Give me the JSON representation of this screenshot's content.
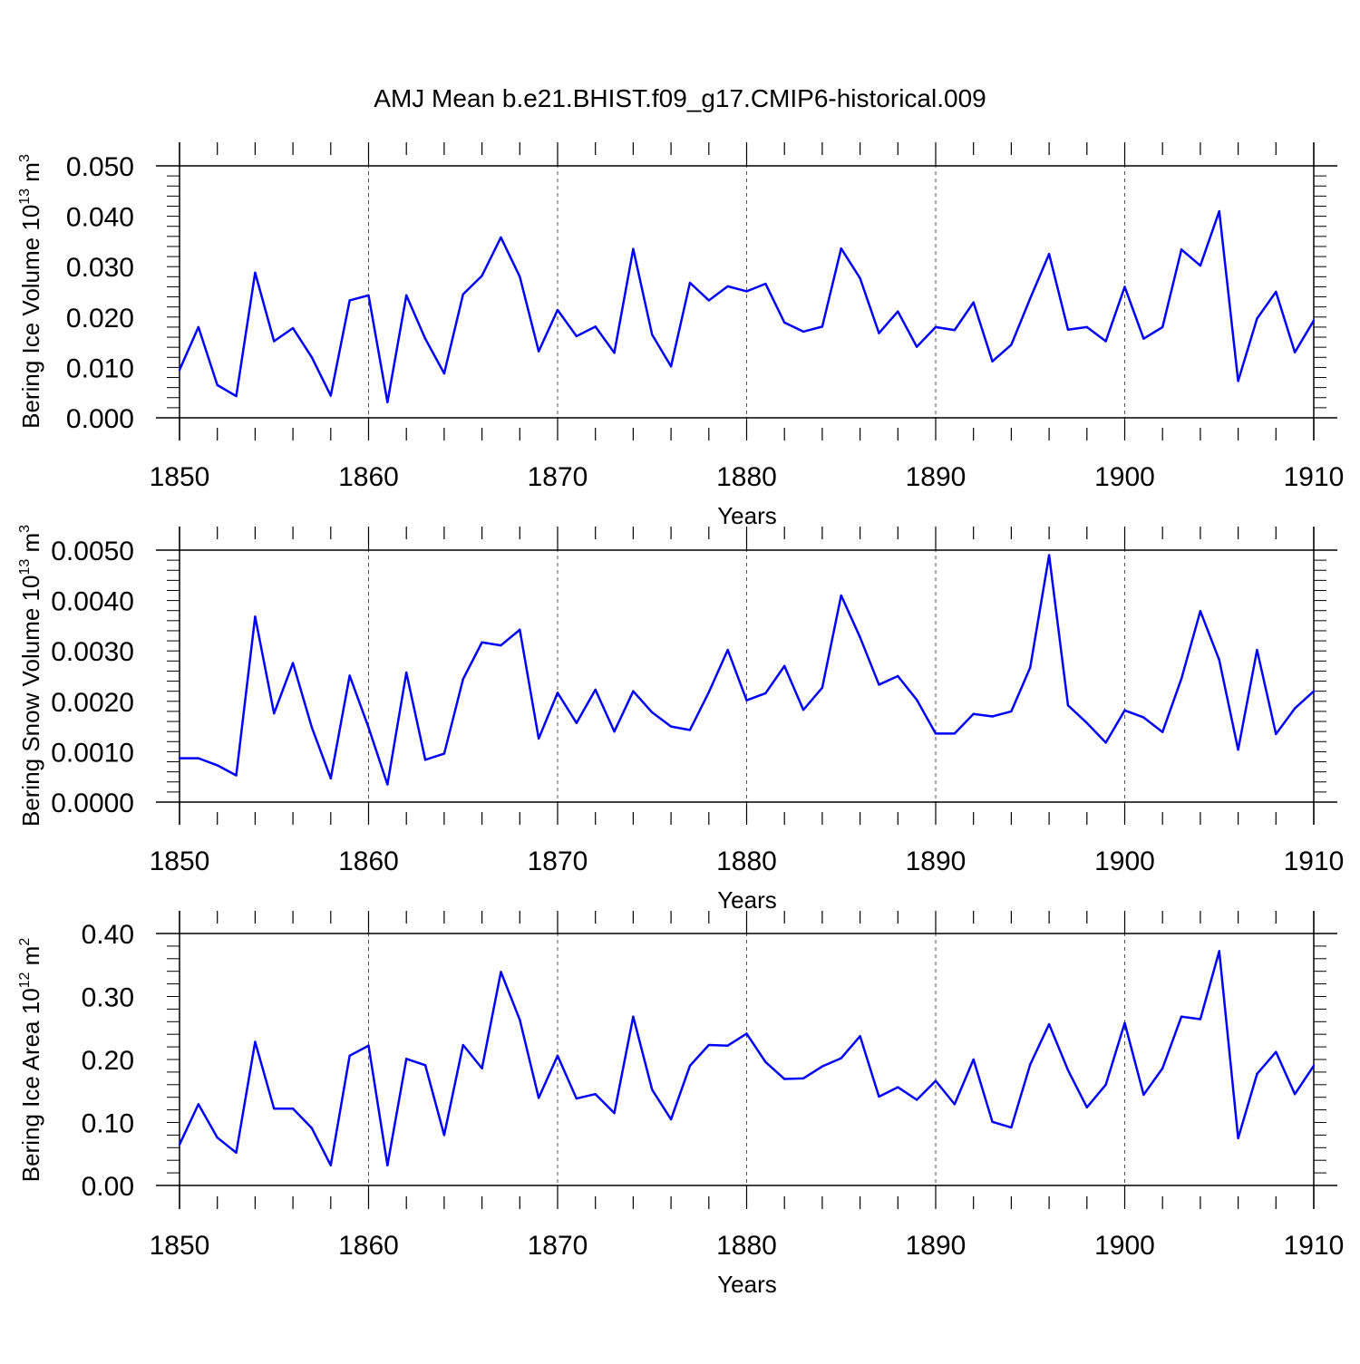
{
  "title": "AMJ Mean b.e21.BHIST.f09_g17.CMIP6-historical.009",
  "colors": {
    "line": "#0000ff",
    "axis": "#000000",
    "grid": "#555555"
  },
  "chart_data": [
    {
      "type": "line",
      "ylabel_main": "Bering Ice Volume 10",
      "ylabel_sup1": "13",
      "ylabel_unit": " m",
      "ylabel_sup2": "3",
      "xlabel": "Years",
      "xlim": [
        1850,
        1910
      ],
      "ylim": [
        0.0,
        0.05
      ],
      "x_ticks": [
        "1850",
        "1860",
        "1870",
        "1880",
        "1890",
        "1900",
        "1910"
      ],
      "y_ticks": [
        "0.000",
        "0.010",
        "0.020",
        "0.030",
        "0.040",
        "0.050"
      ],
      "x_tick_values": [
        1850,
        1860,
        1870,
        1880,
        1890,
        1900,
        1910
      ],
      "y_tick_values": [
        0.0,
        0.01,
        0.02,
        0.03,
        0.04,
        0.05
      ],
      "y_minor_step": 0.002,
      "grid": "vertical dashed",
      "x": [
        1850,
        1851,
        1852,
        1853,
        1854,
        1855,
        1856,
        1857,
        1858,
        1859,
        1860,
        1861,
        1862,
        1863,
        1864,
        1865,
        1866,
        1867,
        1868,
        1869,
        1870,
        1871,
        1872,
        1873,
        1874,
        1875,
        1876,
        1877,
        1878,
        1879,
        1880,
        1881,
        1882,
        1883,
        1884,
        1885,
        1886,
        1887,
        1888,
        1889,
        1890,
        1891,
        1892,
        1893,
        1894,
        1895,
        1896,
        1897,
        1898,
        1899,
        1900,
        1901,
        1902,
        1903,
        1904,
        1905,
        1906,
        1907,
        1908,
        1909,
        1910
      ],
      "values": [
        0.0095,
        0.018,
        0.0065,
        0.0043,
        0.0288,
        0.0152,
        0.0178,
        0.012,
        0.0044,
        0.0233,
        0.0243,
        0.0031,
        0.0243,
        0.0157,
        0.0088,
        0.0245,
        0.0282,
        0.0358,
        0.028,
        0.0132,
        0.0214,
        0.0162,
        0.0181,
        0.0129,
        0.0335,
        0.0165,
        0.0102,
        0.0268,
        0.0233,
        0.0261,
        0.0251,
        0.0266,
        0.0189,
        0.0171,
        0.0181,
        0.0336,
        0.0277,
        0.0168,
        0.0211,
        0.0141,
        0.018,
        0.0174,
        0.0229,
        0.0112,
        0.0145,
        0.0237,
        0.0325,
        0.0175,
        0.018,
        0.0152,
        0.026,
        0.0157,
        0.018,
        0.0334,
        0.0302,
        0.041,
        0.0073,
        0.0197,
        0.025,
        0.013,
        0.0193
      ]
    },
    {
      "type": "line",
      "ylabel_main": "Bering Snow Volume 10",
      "ylabel_sup1": "13",
      "ylabel_unit": " m",
      "ylabel_sup2": "3",
      "xlabel": "Years",
      "xlim": [
        1850,
        1910
      ],
      "ylim": [
        0.0,
        0.005
      ],
      "x_ticks": [
        "1850",
        "1860",
        "1870",
        "1880",
        "1890",
        "1900",
        "1910"
      ],
      "y_ticks": [
        "0.0000",
        "0.0010",
        "0.0020",
        "0.0030",
        "0.0040",
        "0.0050"
      ],
      "x_tick_values": [
        1850,
        1860,
        1870,
        1880,
        1890,
        1900,
        1910
      ],
      "y_tick_values": [
        0.0,
        0.001,
        0.002,
        0.003,
        0.004,
        0.005
      ],
      "y_minor_step": 0.0002,
      "grid": "vertical dashed",
      "x": [
        1850,
        1851,
        1852,
        1853,
        1854,
        1855,
        1856,
        1857,
        1858,
        1859,
        1860,
        1861,
        1862,
        1863,
        1864,
        1865,
        1866,
        1867,
        1868,
        1869,
        1870,
        1871,
        1872,
        1873,
        1874,
        1875,
        1876,
        1877,
        1878,
        1879,
        1880,
        1881,
        1882,
        1883,
        1884,
        1885,
        1886,
        1887,
        1888,
        1889,
        1890,
        1891,
        1892,
        1893,
        1894,
        1895,
        1896,
        1897,
        1898,
        1899,
        1900,
        1901,
        1902,
        1903,
        1904,
        1905,
        1906,
        1907,
        1908,
        1909,
        1910
      ],
      "values": [
        0.00087,
        0.00087,
        0.00073,
        0.00053,
        0.00368,
        0.00176,
        0.00276,
        0.00148,
        0.00047,
        0.00251,
        0.00148,
        0.00035,
        0.00257,
        0.00084,
        0.00096,
        0.00244,
        0.00317,
        0.00311,
        0.00342,
        0.00126,
        0.00217,
        0.00157,
        0.00223,
        0.0014,
        0.0022,
        0.00178,
        0.0015,
        0.00143,
        0.00218,
        0.00302,
        0.00202,
        0.00216,
        0.0027,
        0.00183,
        0.00227,
        0.0041,
        0.00327,
        0.00233,
        0.0025,
        0.00203,
        0.00136,
        0.00136,
        0.00175,
        0.0017,
        0.0018,
        0.00267,
        0.0049,
        0.00192,
        0.00157,
        0.00118,
        0.00182,
        0.00168,
        0.00139,
        0.00245,
        0.00379,
        0.00282,
        0.00104,
        0.00302,
        0.00135,
        0.00186,
        0.0022
      ]
    },
    {
      "type": "line",
      "ylabel_main": "Bering Ice Area 10",
      "ylabel_sup1": "12",
      "ylabel_unit": " m",
      "ylabel_sup2": "2",
      "xlabel": "Years",
      "xlim": [
        1850,
        1910
      ],
      "ylim": [
        0.0,
        0.4
      ],
      "x_ticks": [
        "1850",
        "1860",
        "1870",
        "1880",
        "1890",
        "1900",
        "1910"
      ],
      "y_ticks": [
        "0.00",
        "0.10",
        "0.20",
        "0.30",
        "0.40"
      ],
      "x_tick_values": [
        1850,
        1860,
        1870,
        1880,
        1890,
        1900,
        1910
      ],
      "y_tick_values": [
        0.0,
        0.1,
        0.2,
        0.3,
        0.4
      ],
      "y_minor_step": 0.02,
      "grid": "vertical dashed",
      "x": [
        1850,
        1851,
        1852,
        1853,
        1854,
        1855,
        1856,
        1857,
        1858,
        1859,
        1860,
        1861,
        1862,
        1863,
        1864,
        1865,
        1866,
        1867,
        1868,
        1869,
        1870,
        1871,
        1872,
        1873,
        1874,
        1875,
        1876,
        1877,
        1878,
        1879,
        1880,
        1881,
        1882,
        1883,
        1884,
        1885,
        1886,
        1887,
        1888,
        1889,
        1890,
        1891,
        1892,
        1893,
        1894,
        1895,
        1896,
        1897,
        1898,
        1899,
        1900,
        1901,
        1902,
        1903,
        1904,
        1905,
        1906,
        1907,
        1908,
        1909,
        1910
      ],
      "values": [
        0.065,
        0.129,
        0.076,
        0.052,
        0.228,
        0.122,
        0.122,
        0.091,
        0.032,
        0.206,
        0.222,
        0.032,
        0.201,
        0.191,
        0.08,
        0.223,
        0.186,
        0.339,
        0.263,
        0.139,
        0.206,
        0.138,
        0.145,
        0.115,
        0.268,
        0.152,
        0.105,
        0.19,
        0.223,
        0.222,
        0.241,
        0.196,
        0.169,
        0.17,
        0.189,
        0.202,
        0.237,
        0.141,
        0.156,
        0.136,
        0.166,
        0.129,
        0.2,
        0.101,
        0.092,
        0.192,
        0.256,
        0.183,
        0.124,
        0.16,
        0.258,
        0.144,
        0.186,
        0.268,
        0.264,
        0.372,
        0.075,
        0.177,
        0.212,
        0.145,
        0.19
      ]
    }
  ]
}
